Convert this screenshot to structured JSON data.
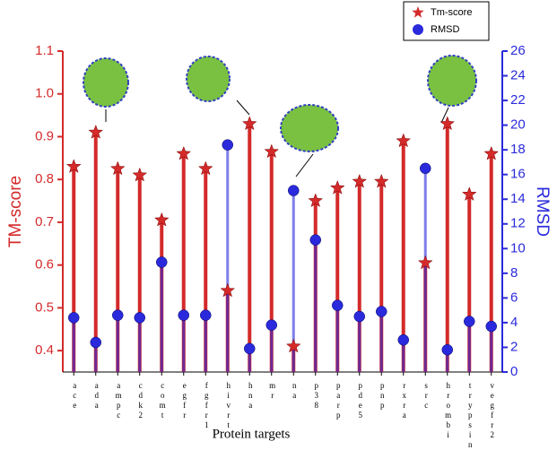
{
  "chart_data": {
    "type": "lollipop",
    "x_label": "Protein targets",
    "y_label": "TM-score",
    "y2_label": "RMSD",
    "categories": [
      "ace",
      "ada",
      "ampc",
      "cdk2",
      "comt",
      "egfr",
      "fgfr1",
      "hivrt",
      "hna",
      "mr",
      "na",
      "p38",
      "parp",
      "pde5",
      "pnp",
      "rxra",
      "src",
      "hrombi",
      "trypsin",
      "vegfr2"
    ],
    "series": [
      {
        "name": "Tm-score",
        "color": "#d42a2a",
        "values": [
          0.83,
          0.91,
          0.825,
          0.81,
          0.705,
          0.86,
          0.825,
          0.54,
          0.93,
          0.865,
          0.41,
          0.75,
          0.78,
          0.795,
          0.795,
          0.89,
          0.605,
          0.93,
          0.765,
          0.86
        ]
      },
      {
        "name": "RMSD",
        "color": "#2a2adc",
        "axis": "y2",
        "values": [
          4.4,
          2.4,
          4.6,
          4.4,
          8.9,
          4.6,
          4.6,
          18.4,
          1.9,
          3.8,
          14.7,
          10.7,
          5.4,
          4.5,
          4.9,
          2.6,
          16.5,
          1.8,
          4.1,
          3.7
        ]
      }
    ],
    "ylim": [
      0.35,
      1.1
    ],
    "yticks": [
      0.4,
      0.5,
      0.6,
      0.7,
      0.8,
      0.9,
      {
        "value": 1.0,
        "label": "1.0"
      },
      1.1
    ],
    "y2lim": [
      0,
      26
    ],
    "y2ticks": [
      0,
      2,
      4,
      6,
      8,
      10,
      12,
      14,
      16,
      18,
      20,
      22,
      24,
      26
    ]
  }
}
